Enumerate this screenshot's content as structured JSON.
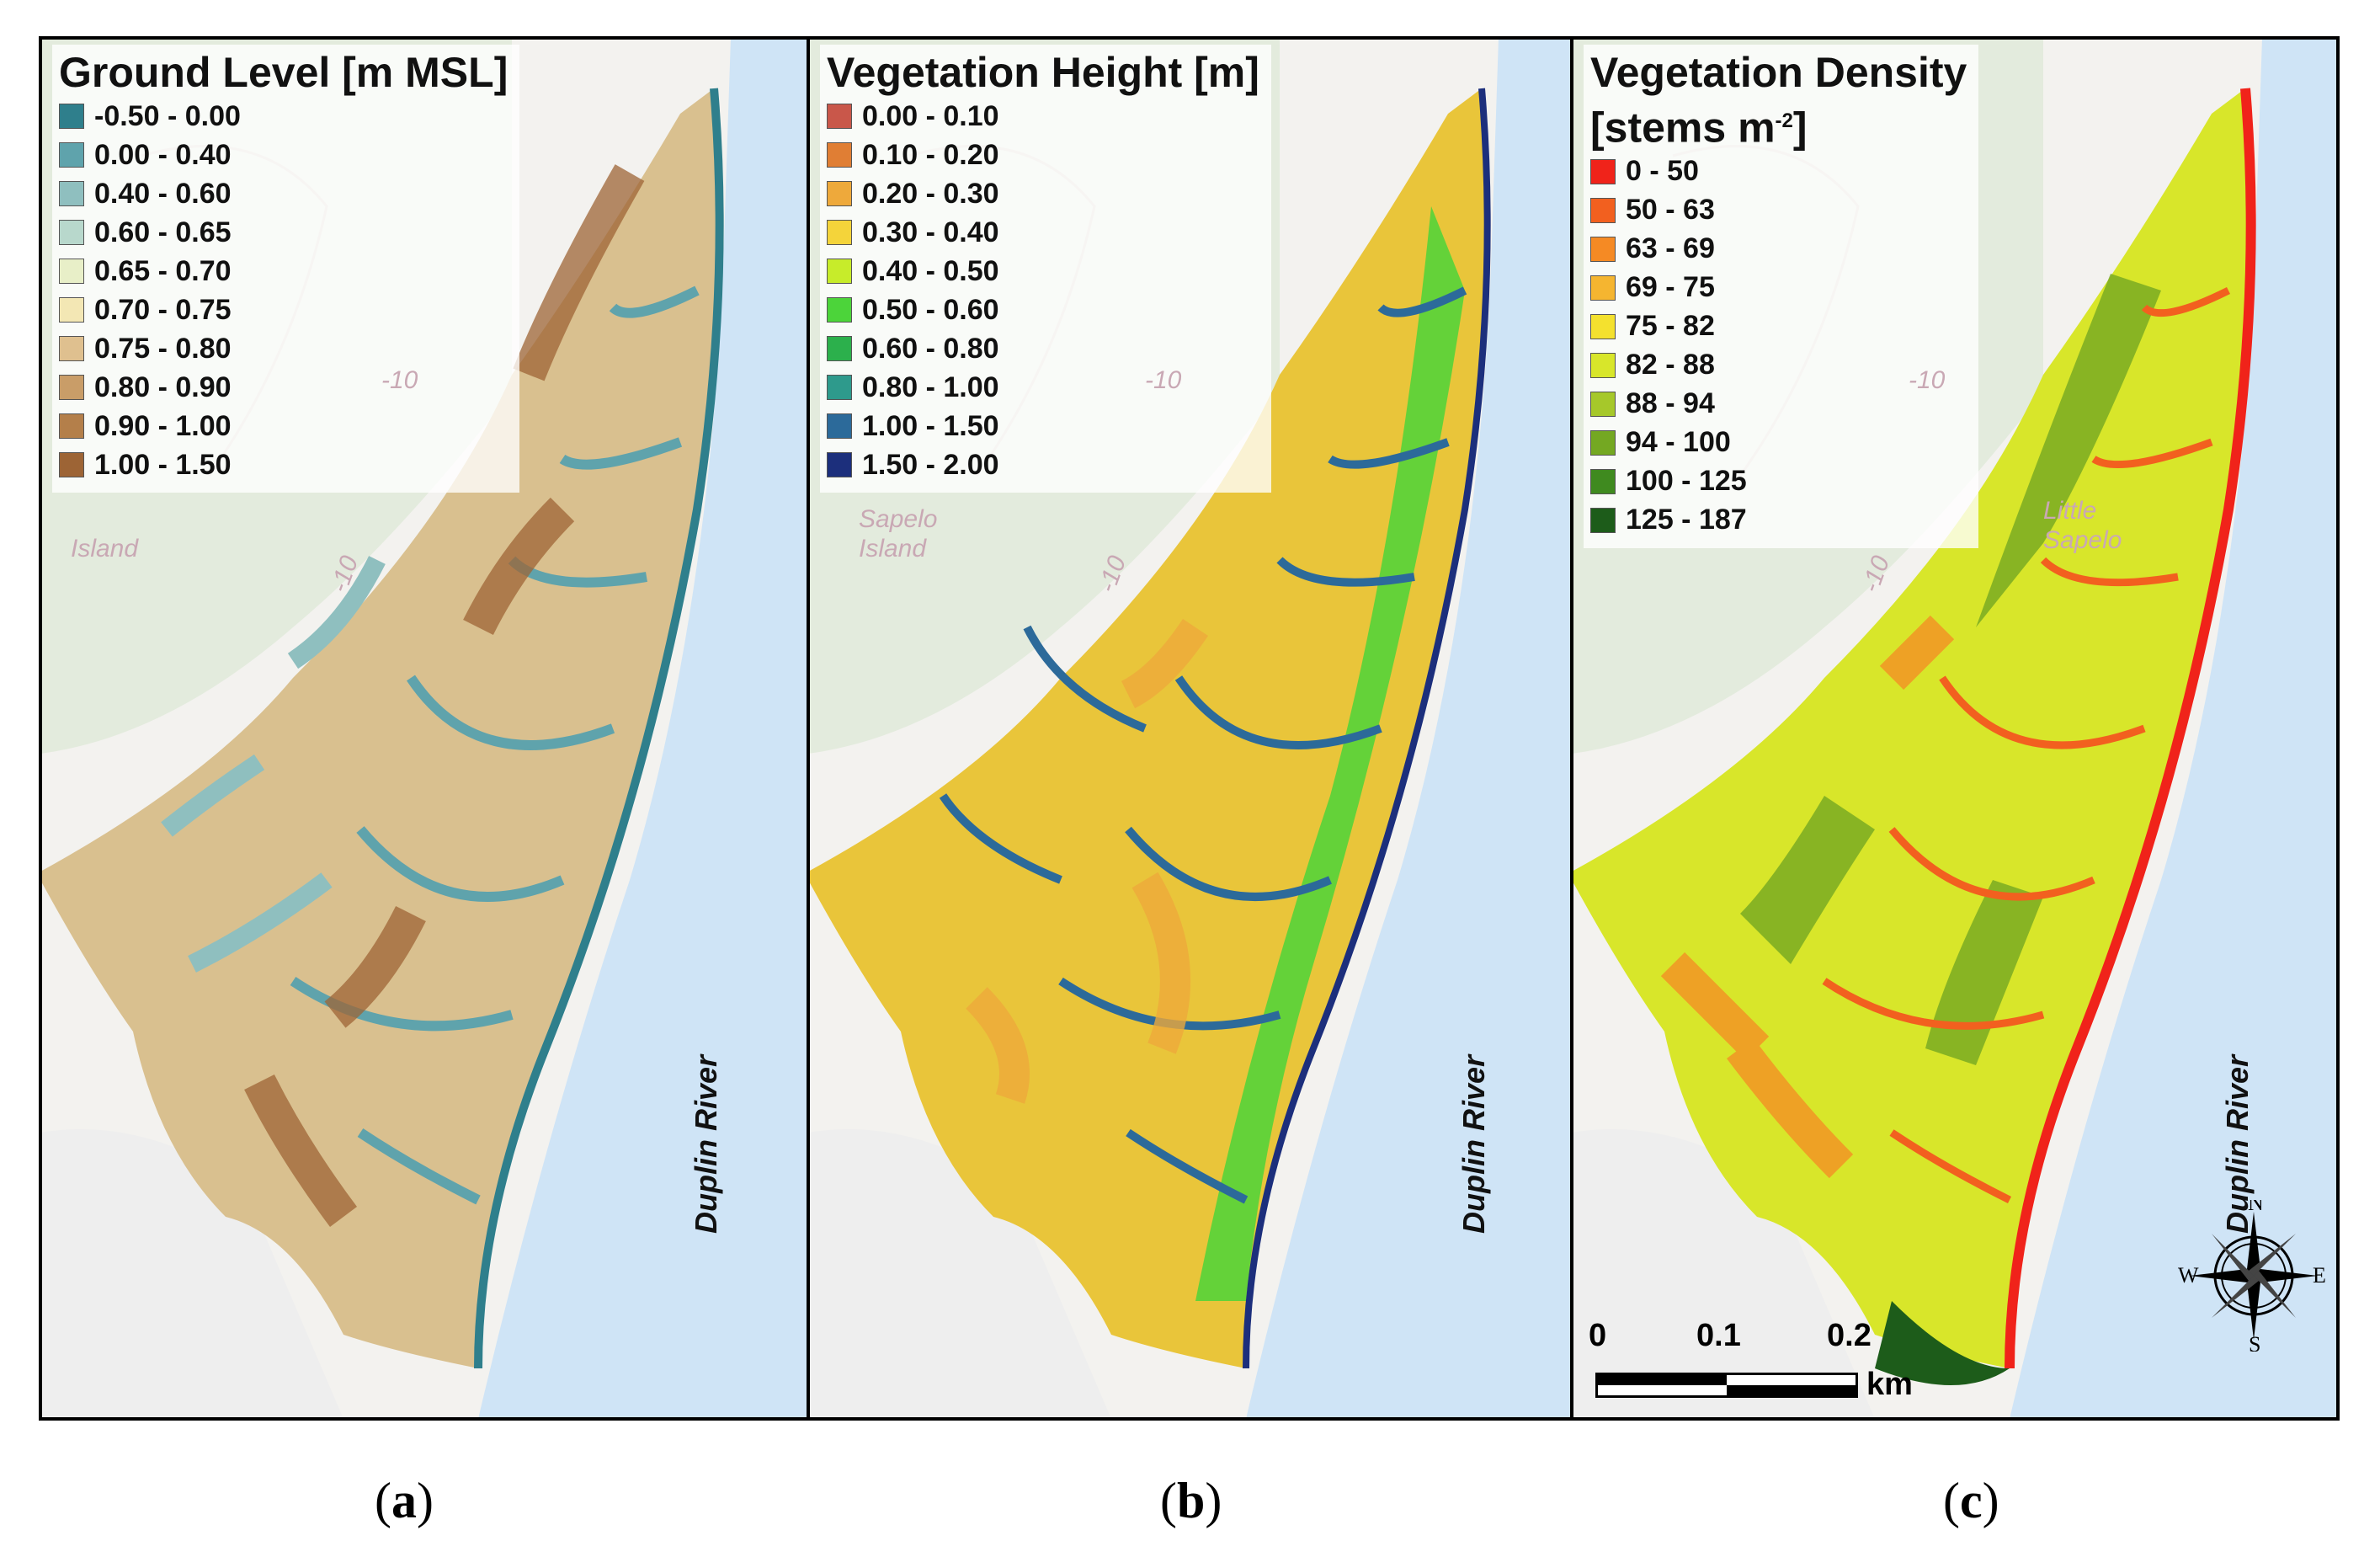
{
  "panels": [
    {
      "id": "a",
      "legend_title": "Ground Level [m MSL]",
      "classes": [
        {
          "label": "-0.50 - 0.00",
          "color": "#2f7f8c"
        },
        {
          "label": "0.00 - 0.40",
          "color": "#5fa3ac"
        },
        {
          "label": "0.40 - 0.60",
          "color": "#8fbfbf"
        },
        {
          "label": "0.60 - 0.65",
          "color": "#b8d8cc"
        },
        {
          "label": "0.65 - 0.70",
          "color": "#e8efc8"
        },
        {
          "label": "0.70 - 0.75",
          "color": "#f3e7b4"
        },
        {
          "label": "0.75 - 0.80",
          "color": "#dfc08f"
        },
        {
          "label": "0.80 - 0.90",
          "color": "#c99d68"
        },
        {
          "label": "0.90 - 1.00",
          "color": "#b47f4a"
        },
        {
          "label": "1.00 - 1.50",
          "color": "#9d6435"
        }
      ],
      "river_label": "Duplin River",
      "basemap_labels": [
        "-10",
        "-10",
        "Island"
      ],
      "caption_letter": "a"
    },
    {
      "id": "b",
      "legend_title": "Vegetation Height [m]",
      "classes": [
        {
          "label": "0.00 - 0.10",
          "color": "#c9574a"
        },
        {
          "label": "0.10 - 0.20",
          "color": "#e07e34"
        },
        {
          "label": "0.20 - 0.30",
          "color": "#eea93b"
        },
        {
          "label": "0.30 - 0.40",
          "color": "#f4d43a"
        },
        {
          "label": "0.40 - 0.50",
          "color": "#c7ec2a"
        },
        {
          "label": "0.50 - 0.60",
          "color": "#4cd43a"
        },
        {
          "label": "0.60 - 0.80",
          "color": "#2cb04c"
        },
        {
          "label": "0.80 - 1.00",
          "color": "#2e9a8c"
        },
        {
          "label": "1.00 - 1.50",
          "color": "#2c6a9a"
        },
        {
          "label": "1.50 - 2.00",
          "color": "#1c2f7c"
        }
      ],
      "river_label": "Duplin River",
      "basemap_labels": [
        "-10",
        "-10",
        "Sapelo",
        "Island"
      ],
      "caption_letter": "b"
    },
    {
      "id": "c",
      "legend_title_line1": "Vegetation Density",
      "legend_title_line2_prefix": "[stems m",
      "legend_title_sup": "-2",
      "legend_title_line2_suffix": "]",
      "classes": [
        {
          "label": "0 - 50",
          "color": "#f0231a"
        },
        {
          "label": "50 - 63",
          "color": "#f2601f"
        },
        {
          "label": "63 - 69",
          "color": "#f58a24"
        },
        {
          "label": "69 - 75",
          "color": "#f5b530"
        },
        {
          "label": "75 - 82",
          "color": "#f4e12e"
        },
        {
          "label": "82 - 88",
          "color": "#d8e62a"
        },
        {
          "label": "88 - 94",
          "color": "#a6c82a"
        },
        {
          "label": "94 - 100",
          "color": "#74a822"
        },
        {
          "label": "100 - 125",
          "color": "#3f8a1f"
        },
        {
          "label": "125 - 187",
          "color": "#1d5c1a"
        }
      ],
      "river_label": "Duplin River",
      "basemap_labels": [
        "-10",
        "-10",
        "Little",
        "Sapelo"
      ],
      "scale_bar": {
        "ticks": [
          "0",
          "0.1",
          "0.2"
        ],
        "unit": "km"
      },
      "compass": {
        "n": "N",
        "s": "S",
        "e": "E",
        "w": "W"
      },
      "caption_letter": "c"
    }
  ],
  "colors": {
    "water": "#cfe4f6",
    "land": "#e3ebdd",
    "basemap_bg": "#f3f2ef",
    "contour": "#d8d0c8"
  }
}
